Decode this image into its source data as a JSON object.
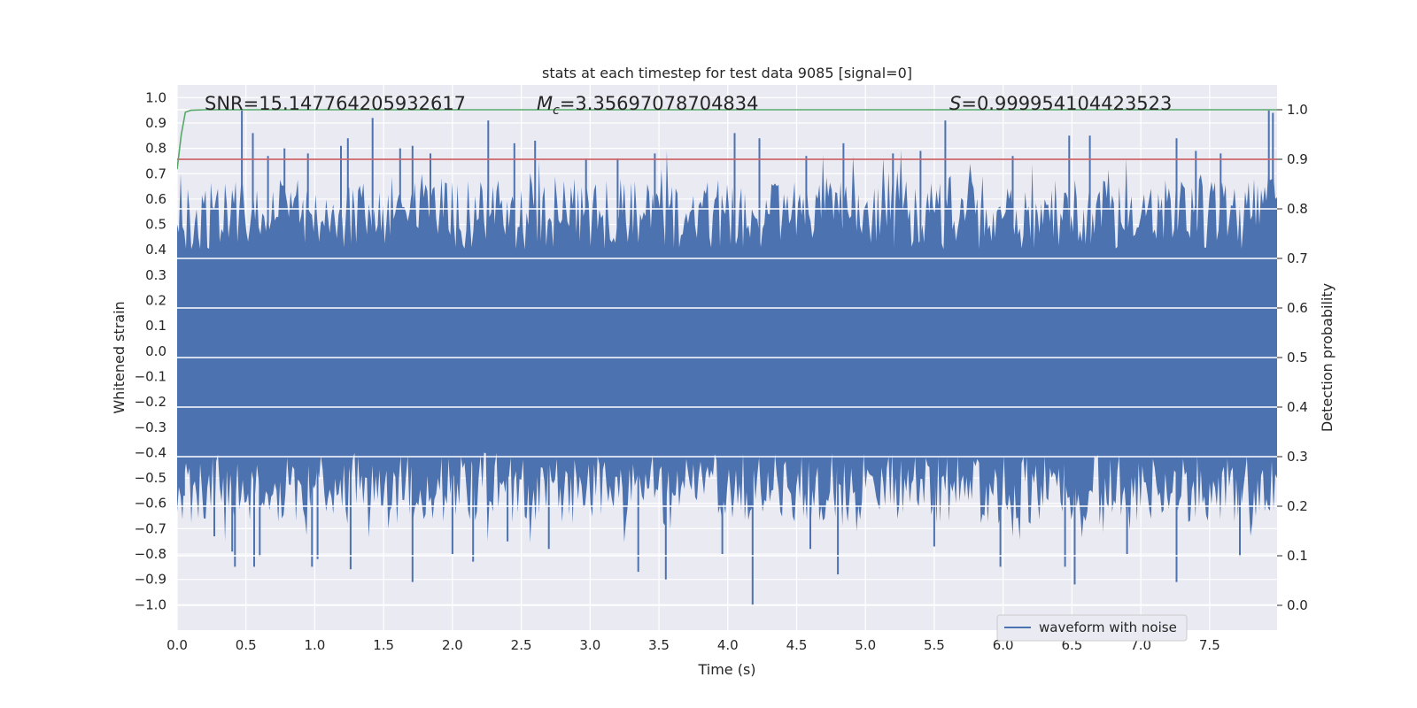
{
  "chart_data": {
    "type": "line",
    "title": "stats at each timestep for test data 9085 [signal=0]",
    "xlabel": "Time (s)",
    "ylabel_left": "Whitened strain",
    "ylabel_right": "Detection probability",
    "xlim": [
      0,
      7.99
    ],
    "ylim_left": [
      -1.1,
      1.05
    ],
    "ylim_right": [
      -0.05,
      1.05
    ],
    "x_ticks": [
      0,
      0.5,
      1,
      1.5,
      2,
      2.5,
      3,
      3.5,
      4,
      4.5,
      5,
      5.5,
      6,
      6.5,
      7,
      7.5
    ],
    "x_tick_labels": [
      "0.0",
      "0.5",
      "1.0",
      "1.5",
      "2.0",
      "2.5",
      "3.0",
      "3.5",
      "4.0",
      "4.5",
      "5.0",
      "5.5",
      "6.0",
      "6.5",
      "7.0",
      "7.5"
    ],
    "y_left_ticks": [
      1,
      0.9,
      0.8,
      0.7,
      0.6,
      0.5,
      0.4,
      0.3,
      0.2,
      0.1,
      0,
      -0.1,
      -0.2,
      -0.3,
      -0.4,
      -0.5,
      -0.6,
      -0.7,
      -0.8,
      -0.9,
      -1
    ],
    "y_left_tick_labels": [
      "1.0",
      "0.9",
      "0.8",
      "0.7",
      "0.6",
      "0.5",
      "0.4",
      "0.3",
      "0.2",
      "0.1",
      "0.0",
      "−0.1",
      "−0.2",
      "−0.3",
      "−0.4",
      "−0.5",
      "−0.6",
      "−0.7",
      "−0.8",
      "−0.9",
      "−1.0"
    ],
    "y_right_ticks": [
      1,
      0.9,
      0.8,
      0.7,
      0.6,
      0.5,
      0.4,
      0.3,
      0.2,
      0.1,
      0
    ],
    "y_right_tick_labels": [
      "1.0",
      "0.9",
      "0.8",
      "0.7",
      "0.6",
      "0.5",
      "0.4",
      "0.3",
      "0.2",
      "0.1",
      "0.0"
    ],
    "stats": {
      "snr": "SNR=15.147764205932617",
      "mc_symbol": "M",
      "mc_sub": "c",
      "mc_value": "=3.35697078704834",
      "s_symbol": "S",
      "s_value": "=0.999954104423523"
    },
    "threshold": {
      "value": 0.9,
      "axis": "right",
      "color": "#c44e52"
    },
    "probability_series": {
      "name": "detection probability",
      "color": "#55a868",
      "x": [
        0,
        0.03,
        0.06,
        0.1,
        0.2,
        7.99
      ],
      "y": [
        0.88,
        0.95,
        0.995,
        0.999,
        0.99995,
        0.99995
      ]
    },
    "waveform_series": {
      "name": "waveform with noise",
      "color": "#4c72b0",
      "typical_band": [
        -0.4,
        0.4
      ],
      "peaks_pos": [
        [
          0.47,
          0.95
        ],
        [
          0.55,
          0.86
        ],
        [
          0.66,
          0.77
        ],
        [
          0.78,
          0.8
        ],
        [
          0.95,
          0.78
        ],
        [
          1.19,
          0.81
        ],
        [
          1.24,
          0.84
        ],
        [
          1.42,
          0.92
        ],
        [
          1.62,
          0.8
        ],
        [
          1.71,
          0.81
        ],
        [
          1.84,
          0.78
        ],
        [
          2.26,
          0.91
        ],
        [
          2.45,
          0.82
        ],
        [
          2.6,
          0.83
        ],
        [
          2.97,
          0.76
        ],
        [
          3.2,
          0.76
        ],
        [
          3.47,
          0.78
        ],
        [
          4.05,
          0.86
        ],
        [
          4.23,
          0.84
        ],
        [
          4.57,
          0.77
        ],
        [
          4.84,
          0.82
        ],
        [
          5.2,
          0.78
        ],
        [
          5.4,
          0.79
        ],
        [
          5.58,
          0.91
        ],
        [
          6.07,
          0.77
        ],
        [
          6.48,
          0.85
        ],
        [
          6.63,
          0.85
        ],
        [
          7.26,
          0.84
        ],
        [
          7.4,
          0.79
        ],
        [
          7.58,
          0.78
        ],
        [
          7.93,
          0.95
        ],
        [
          7.96,
          0.94
        ]
      ],
      "peaks_neg": [
        [
          0.05,
          -0.57
        ],
        [
          0.27,
          -0.73
        ],
        [
          0.4,
          -0.79
        ],
        [
          0.42,
          -0.85
        ],
        [
          0.56,
          -0.85
        ],
        [
          0.6,
          -0.81
        ],
        [
          0.98,
          -0.85
        ],
        [
          1.02,
          -0.82
        ],
        [
          1.26,
          -0.86
        ],
        [
          1.71,
          -0.91
        ],
        [
          2.0,
          -0.8
        ],
        [
          2.15,
          -0.83
        ],
        [
          2.4,
          -0.75
        ],
        [
          2.7,
          -0.78
        ],
        [
          3.35,
          -0.87
        ],
        [
          3.55,
          -0.9
        ],
        [
          3.96,
          -0.8
        ],
        [
          4.18,
          -1.0
        ],
        [
          4.6,
          -0.78
        ],
        [
          4.8,
          -0.88
        ],
        [
          5.5,
          -0.77
        ],
        [
          5.98,
          -0.85
        ],
        [
          6.45,
          -0.85
        ],
        [
          6.52,
          -0.92
        ],
        [
          6.9,
          -0.8
        ],
        [
          7.26,
          -0.91
        ],
        [
          7.72,
          -0.81
        ]
      ]
    },
    "legend": {
      "label": "waveform with noise",
      "position": "lower-right"
    }
  }
}
